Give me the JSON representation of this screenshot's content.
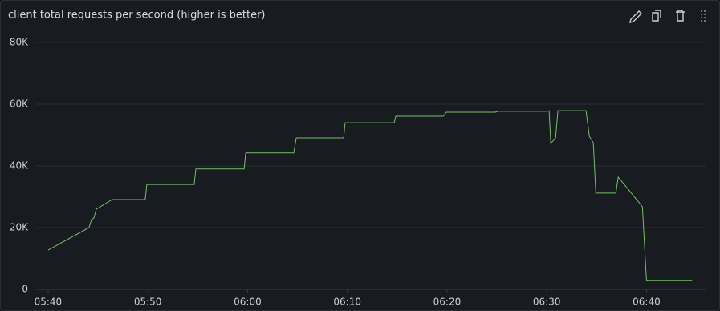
{
  "chart_data": {
    "type": "line",
    "title": "client total requests per second (higher is better)",
    "x": [
      "05:40:00",
      "05:44:06",
      "05:44:21",
      "05:44:35",
      "05:44:50",
      "05:46:26",
      "05:49:44",
      "05:49:54",
      "05:54:39",
      "05:54:49",
      "05:59:39",
      "05:59:49",
      "06:04:38",
      "06:04:53",
      "06:09:38",
      "06:09:47",
      "06:14:42",
      "06:14:52",
      "06:19:37",
      "06:19:56",
      "06:24:50",
      "06:25:04",
      "06:30:00",
      "06:30:14",
      "06:30:24",
      "06:30:53",
      "06:31:07",
      "06:33:56",
      "06:34:16",
      "06:34:40",
      "06:34:55",
      "06:36:56",
      "06:37:10",
      "06:39:35",
      "06:40:00",
      "06:44:35"
    ],
    "values": [
      12700,
      20000,
      22600,
      23100,
      26000,
      29100,
      29100,
      34000,
      34000,
      39000,
      39000,
      44200,
      44200,
      49100,
      49100,
      54000,
      54000,
      56100,
      56100,
      57400,
      57400,
      57700,
      57700,
      57900,
      47300,
      49100,
      57900,
      57900,
      49600,
      47500,
      31200,
      31200,
      36400,
      26800,
      2900,
      2900
    ],
    "color": "#73bf69",
    "xlim": [
      "05:38:48",
      "06:46:00"
    ],
    "xticks": [
      "05:40",
      "05:50",
      "06:00",
      "06:10",
      "06:20",
      "06:30",
      "06:40"
    ],
    "ylim": [
      0,
      80000
    ],
    "yticks": [
      0,
      {
        "value": 20000,
        "label": "20K"
      },
      {
        "value": 40000,
        "label": "40K"
      },
      {
        "value": 60000,
        "label": "60K"
      },
      {
        "value": 80000,
        "label": "80K"
      }
    ],
    "grid": true
  }
}
